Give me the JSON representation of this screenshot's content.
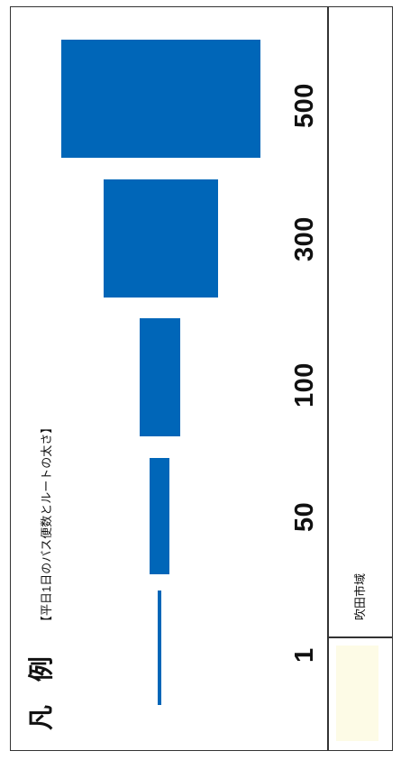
{
  "legend": {
    "title": "凡 例",
    "subtitle": "【平日1日のバス便数とルートの太さ】",
    "bar_color": "#0066b8",
    "items": [
      {
        "label": "1",
        "value": 1
      },
      {
        "label": "50",
        "value": 50
      },
      {
        "label": "100",
        "value": 100
      },
      {
        "label": "300",
        "value": 300
      },
      {
        "label": "500",
        "value": 500
      }
    ]
  },
  "area": {
    "label": "吹田市域",
    "color": "#fdfbe6"
  }
}
